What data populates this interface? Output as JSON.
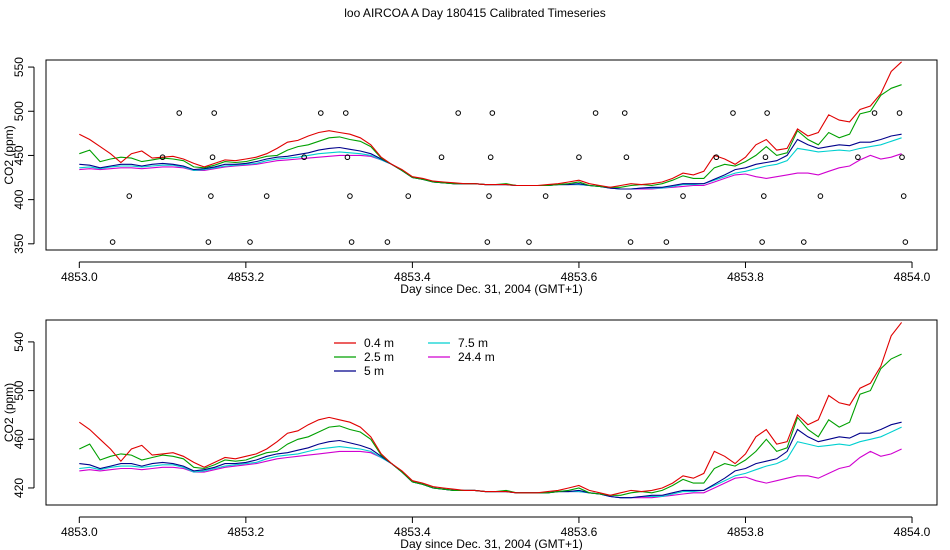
{
  "title": "loo AIRCOA A  Day 180415  Calibrated Timeseries",
  "chart_data": [
    {
      "type": "line",
      "xlabel": "Day since Dec. 31, 2004 (GMT+1)",
      "ylabel": "CO2 (ppm)",
      "xlim": [
        4852.96,
        4854.03
      ],
      "ylim": [
        343,
        558
      ],
      "xticks": [
        4853.0,
        4853.2,
        4853.4,
        4853.6,
        4853.8,
        4854.0
      ],
      "xtick_labels": [
        "4853.0",
        "4853.2",
        "4853.4",
        "4853.6",
        "4853.8",
        "4854.0"
      ],
      "yticks": [
        350,
        400,
        450,
        500,
        550
      ],
      "ytick_labels": [
        "350",
        "400",
        "450",
        "500",
        "550"
      ],
      "grid": false,
      "series_ref": "shared",
      "markers": {
        "style": "open-circle",
        "points": [
          [
            4853.04,
            352
          ],
          [
            4853.06,
            404
          ],
          [
            4853.1,
            448
          ],
          [
            4853.12,
            498
          ],
          [
            4853.155,
            352
          ],
          [
            4853.158,
            404
          ],
          [
            4853.16,
            448
          ],
          [
            4853.162,
            498
          ],
          [
            4853.205,
            352
          ],
          [
            4853.225,
            404
          ],
          [
            4853.27,
            448
          ],
          [
            4853.29,
            498
          ],
          [
            4853.32,
            498
          ],
          [
            4853.322,
            448
          ],
          [
            4853.325,
            404
          ],
          [
            4853.327,
            352
          ],
          [
            4853.37,
            352
          ],
          [
            4853.395,
            404
          ],
          [
            4853.435,
            448
          ],
          [
            4853.455,
            498
          ],
          [
            4853.49,
            352
          ],
          [
            4853.492,
            404
          ],
          [
            4853.494,
            448
          ],
          [
            4853.496,
            498
          ],
          [
            4853.54,
            352
          ],
          [
            4853.56,
            404
          ],
          [
            4853.6,
            448
          ],
          [
            4853.62,
            498
          ],
          [
            4853.655,
            498
          ],
          [
            4853.657,
            448
          ],
          [
            4853.66,
            404
          ],
          [
            4853.662,
            352
          ],
          [
            4853.705,
            352
          ],
          [
            4853.725,
            404
          ],
          [
            4853.765,
            448
          ],
          [
            4853.785,
            498
          ],
          [
            4853.82,
            352
          ],
          [
            4853.822,
            404
          ],
          [
            4853.824,
            448
          ],
          [
            4853.826,
            498
          ],
          [
            4853.87,
            352
          ],
          [
            4853.89,
            404
          ],
          [
            4853.935,
            448
          ],
          [
            4853.955,
            498
          ],
          [
            4853.985,
            498
          ],
          [
            4853.988,
            448
          ],
          [
            4853.99,
            404
          ],
          [
            4853.992,
            352
          ]
        ]
      }
    },
    {
      "type": "line",
      "xlabel": "Day since Dec. 31, 2004 (GMT+1)",
      "ylabel": "CO2 (ppm)",
      "xlim": [
        4852.96,
        4854.03
      ],
      "ylim": [
        406,
        558
      ],
      "xticks": [
        4853.0,
        4853.2,
        4853.4,
        4853.6,
        4853.8,
        4854.0
      ],
      "xtick_labels": [
        "4853.0",
        "4853.2",
        "4853.4",
        "4853.6",
        "4853.8",
        "4854.0"
      ],
      "yticks": [
        420,
        460,
        500,
        540
      ],
      "ytick_labels": [
        "420",
        "460",
        "500",
        "540"
      ],
      "grid": false,
      "legend": "top-left",
      "series_ref": "shared"
    }
  ],
  "series": [
    {
      "name": "0.4 m",
      "color": "#e00000",
      "values": [
        474,
        468,
        460,
        452,
        442,
        452,
        455,
        447,
        448,
        449,
        446,
        441,
        437,
        441,
        445,
        444,
        446,
        448,
        452,
        458,
        465,
        467,
        472,
        476,
        478,
        476,
        474,
        470,
        462,
        448,
        440,
        434,
        426,
        424,
        421,
        420,
        419,
        418,
        418,
        417,
        417,
        417,
        416,
        416,
        416,
        417,
        418,
        420,
        422,
        418,
        416,
        414,
        416,
        418,
        417,
        418,
        420,
        424,
        430,
        428,
        432,
        450,
        446,
        440,
        448,
        462,
        468,
        456,
        458,
        480,
        472,
        476,
        496,
        490,
        488,
        502,
        506,
        520,
        545,
        556
      ]
    },
    {
      "name": "2.5 m",
      "color": "#00a000",
      "values": [
        452,
        456,
        443,
        446,
        448,
        447,
        443,
        445,
        447,
        446,
        444,
        437,
        436,
        439,
        443,
        442,
        443,
        446,
        449,
        450,
        456,
        460,
        462,
        466,
        470,
        471,
        468,
        466,
        460,
        447,
        440,
        433,
        425,
        423,
        420,
        419,
        418,
        418,
        418,
        417,
        417,
        418,
        416,
        416,
        416,
        416,
        417,
        418,
        420,
        416,
        415,
        414,
        414,
        416,
        417,
        416,
        418,
        422,
        427,
        424,
        424,
        436,
        440,
        438,
        443,
        450,
        460,
        450,
        453,
        478,
        468,
        462,
        476,
        470,
        474,
        497,
        500,
        518,
        526,
        530
      ]
    },
    {
      "name": "5 m",
      "color": "#00008b",
      "values": [
        440,
        439,
        436,
        438,
        440,
        440,
        438,
        440,
        441,
        440,
        438,
        434,
        435,
        437,
        440,
        440,
        441,
        443,
        446,
        448,
        449,
        451,
        453,
        456,
        458,
        459,
        457,
        455,
        452,
        446,
        440,
        433,
        425,
        423,
        420,
        419,
        418,
        418,
        418,
        417,
        417,
        417,
        416,
        416,
        416,
        416,
        417,
        417,
        418,
        416,
        415,
        413,
        412,
        412,
        413,
        414,
        414,
        416,
        418,
        418,
        418,
        423,
        428,
        434,
        436,
        440,
        442,
        444,
        450,
        468,
        462,
        458,
        460,
        462,
        461,
        465,
        465,
        468,
        472,
        474
      ]
    },
    {
      "name": "7.5 m",
      "color": "#00d0d0",
      "values": [
        436,
        437,
        435,
        437,
        438,
        438,
        437,
        438,
        439,
        439,
        437,
        433,
        434,
        436,
        438,
        439,
        440,
        441,
        444,
        446,
        447,
        448,
        450,
        452,
        453,
        454,
        453,
        452,
        450,
        445,
        440,
        433,
        425,
        423,
        420,
        419,
        418,
        418,
        418,
        417,
        417,
        417,
        416,
        416,
        416,
        416,
        417,
        417,
        417,
        416,
        415,
        413,
        412,
        412,
        413,
        413,
        413,
        415,
        417,
        417,
        418,
        422,
        426,
        430,
        432,
        435,
        438,
        440,
        444,
        458,
        456,
        454,
        455,
        456,
        455,
        458,
        460,
        462,
        466,
        470
      ]
    },
    {
      "name": "24.4 m",
      "color": "#d000d0",
      "values": [
        434,
        435,
        434,
        435,
        436,
        436,
        435,
        436,
        437,
        437,
        436,
        433,
        433,
        435,
        437,
        438,
        439,
        440,
        442,
        444,
        445,
        446,
        447,
        448,
        449,
        450,
        450,
        450,
        449,
        445,
        440,
        433,
        425,
        423,
        420,
        419,
        418,
        418,
        418,
        417,
        417,
        417,
        416,
        416,
        416,
        416,
        417,
        417,
        417,
        416,
        415,
        413,
        412,
        412,
        412,
        412,
        413,
        414,
        415,
        416,
        416,
        420,
        424,
        428,
        429,
        426,
        424,
        426,
        428,
        430,
        430,
        428,
        432,
        436,
        438,
        445,
        450,
        446,
        448,
        452
      ]
    }
  ],
  "x_start": 4853.0,
  "x_step": 0.0125
}
